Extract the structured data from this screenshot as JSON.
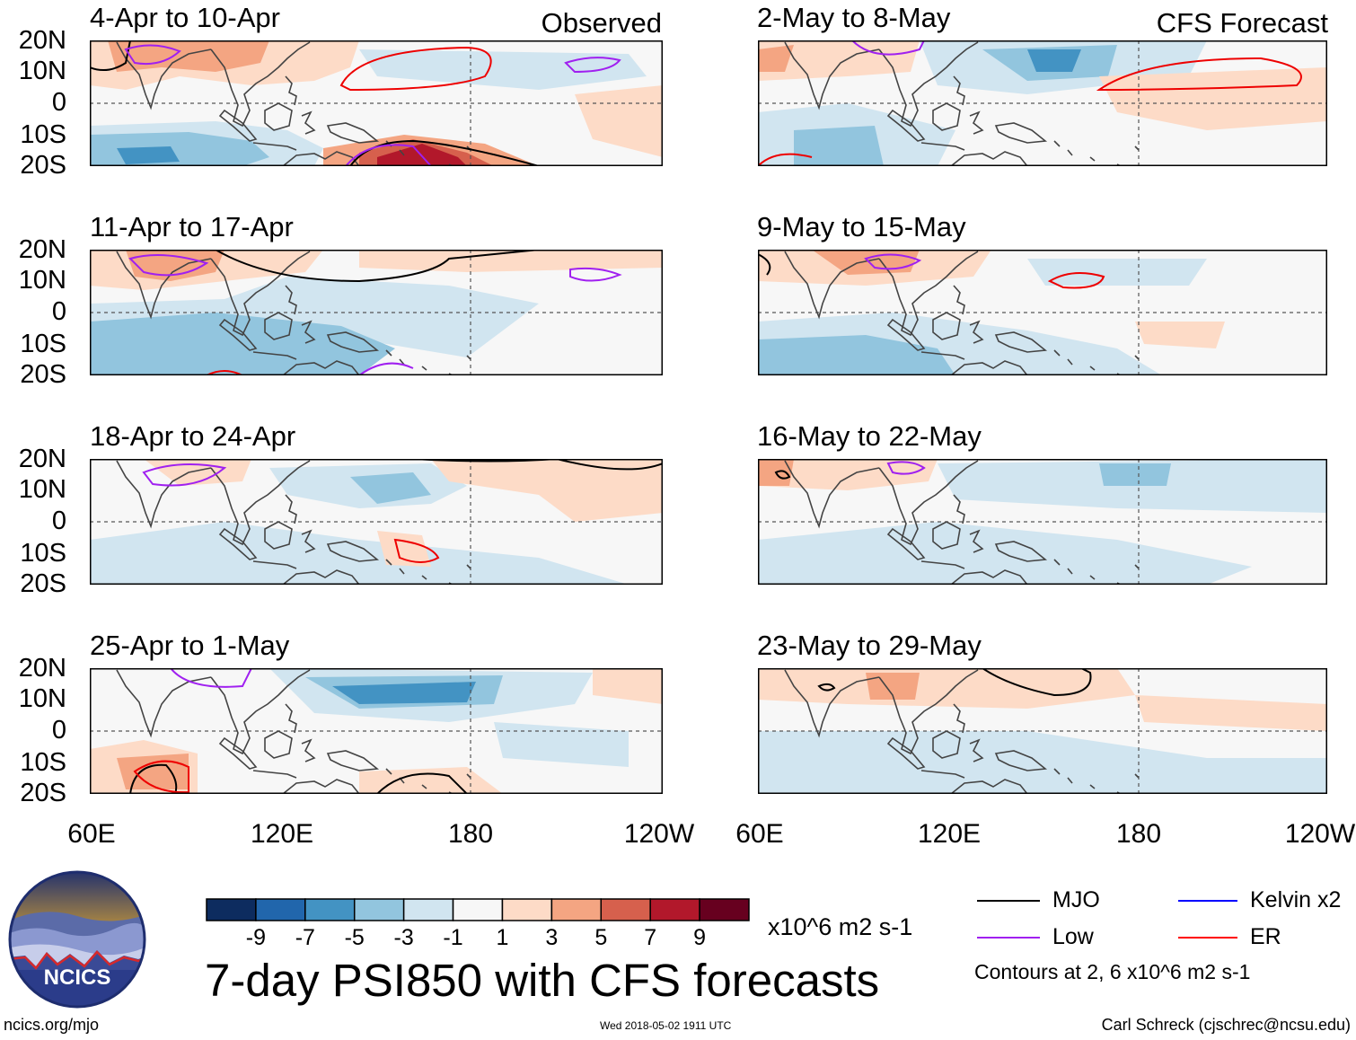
{
  "panels": [
    {
      "title": "4-Apr to 10-Apr",
      "label": "Observed",
      "column": "left",
      "row": 0
    },
    {
      "title": "11-Apr to 17-Apr",
      "label": "",
      "column": "left",
      "row": 1
    },
    {
      "title": "18-Apr to 24-Apr",
      "label": "",
      "column": "left",
      "row": 2
    },
    {
      "title": "25-Apr to 1-May",
      "label": "",
      "column": "left",
      "row": 3
    },
    {
      "title": "2-May to 8-May",
      "label": "CFS Forecast",
      "column": "right",
      "row": 0
    },
    {
      "title": "9-May to 15-May",
      "label": "",
      "column": "right",
      "row": 1
    },
    {
      "title": "16-May to 22-May",
      "label": "",
      "column": "right",
      "row": 2
    },
    {
      "title": "23-May to 29-May",
      "label": "",
      "column": "right",
      "row": 3
    }
  ],
  "lat_labels": [
    "20N",
    "10N",
    "0",
    "10S",
    "20S"
  ],
  "lon_labels": [
    "60E",
    "120E",
    "180",
    "120W"
  ],
  "colorbar": {
    "colors": [
      "#0d2c5f",
      "#2166ac",
      "#4393c3",
      "#92c5de",
      "#d1e5f0",
      "#f7f7f7",
      "#fddbc7",
      "#f4a582",
      "#d6604d",
      "#b2182b",
      "#67001f"
    ],
    "tick_labels": [
      "-9",
      "-7",
      "-5",
      "-3",
      "-1",
      "1",
      "3",
      "5",
      "7",
      "9"
    ],
    "units": "x10^6 m2 s-1"
  },
  "main_title": "7-day PSI850 with CFS forecasts",
  "legend": {
    "items": [
      {
        "label": "MJO",
        "color": "#000000"
      },
      {
        "label": "Kelvin x2",
        "color": "#0000ff"
      },
      {
        "label": "Low",
        "color": "#a020f0"
      },
      {
        "label": "ER",
        "color": "#ff0000"
      }
    ],
    "note": "Contours at 2, 6 x10^6 m2 s-1"
  },
  "logo": {
    "text": "NCICS"
  },
  "footer": {
    "url": "ncics.org/mjo",
    "timestamp": "Wed 2018-05-02 1911 UTC",
    "credit": "Carl Schreck (cjschrec@ncsu.edu)"
  }
}
